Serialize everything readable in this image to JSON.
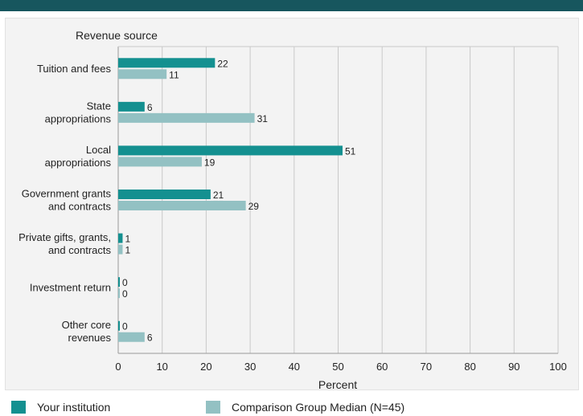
{
  "chart_data": {
    "type": "bar",
    "orientation": "horizontal",
    "title": "",
    "category_axis_title": "Revenue source",
    "xlabel": "Percent",
    "xlim": [
      0,
      100
    ],
    "xticks": [
      0,
      10,
      20,
      30,
      40,
      50,
      60,
      70,
      80,
      90,
      100
    ],
    "grid": true,
    "legend_position": "bottom",
    "categories": [
      [
        "Tuition and fees"
      ],
      [
        "State",
        "appropriations"
      ],
      [
        "Local",
        "appropriations"
      ],
      [
        "Government grants",
        "and contracts"
      ],
      [
        "Private gifts, grants,",
        "and contracts"
      ],
      [
        "Investment return"
      ],
      [
        "Other core",
        "revenues"
      ]
    ],
    "series": [
      {
        "name": "Your institution",
        "color": "#149090",
        "values": [
          22,
          6,
          51,
          21,
          1,
          0,
          0
        ]
      },
      {
        "name": "Comparison Group Median (N=45)",
        "color": "#93c1c3",
        "values": [
          11,
          31,
          19,
          29,
          1,
          0,
          6
        ]
      }
    ]
  },
  "colors": {
    "header_band": "#17565e",
    "panel_background": "#f3f3f3",
    "gridline": "#c9c9c9"
  }
}
